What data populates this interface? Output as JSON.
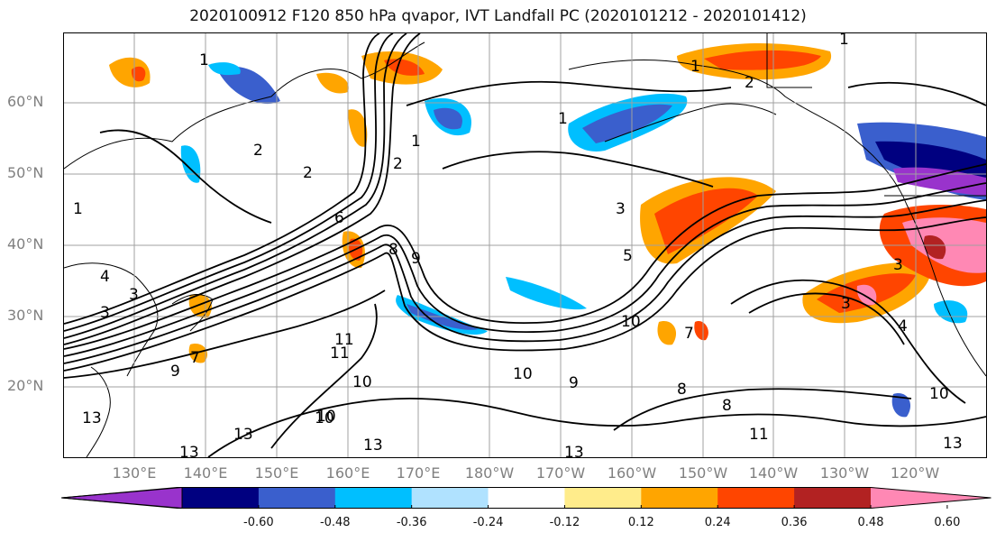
{
  "title": "2020100912 F120 850 hPa qvapor, IVT Landfall PC (2020101212 - 2020101412)",
  "map": {
    "lat_labels": [
      "60°N",
      "50°N",
      "40°N",
      "30°N",
      "20°N"
    ],
    "lon_labels": [
      "130°E",
      "140°E",
      "150°E",
      "160°E",
      "170°E",
      "180°W",
      "170°W",
      "160°W",
      "150°W",
      "140°W",
      "130°W",
      "120°W"
    ],
    "contour_labels": [
      "1",
      "2",
      "2",
      "1",
      "1",
      "2",
      "3",
      "6",
      "8",
      "9",
      "9",
      "3",
      "1",
      "3",
      "4",
      "3",
      "10",
      "10",
      "11",
      "13",
      "13",
      "13",
      "11",
      "10",
      "9",
      "10",
      "8",
      "11",
      "13",
      "10",
      "8",
      "7",
      "2",
      "3",
      "4",
      "7",
      "13",
      "10",
      "13",
      "1",
      "1",
      "5"
    ]
  },
  "colorbar": {
    "colors": [
      "#9933cc",
      "#000080",
      "#3a5fcd",
      "#00bfff",
      "#b0e2ff",
      "#ffffff",
      "#ffec8b",
      "#ffa500",
      "#ff4500",
      "#b22222",
      "#ff88b4"
    ],
    "ticks": [
      "-0.60",
      "-0.48",
      "-0.36",
      "-0.24",
      "-0.12",
      "0.12",
      "0.24",
      "0.36",
      "0.48",
      "0.60"
    ]
  }
}
